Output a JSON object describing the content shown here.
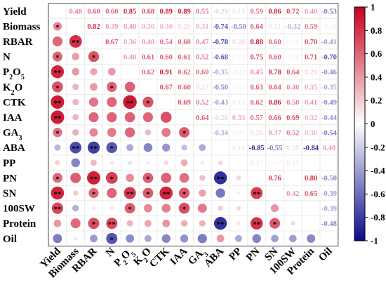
{
  "chart_data": {
    "type": "heatmap",
    "variables": [
      "Yield",
      "Biomass",
      "RBAR",
      "N",
      "P2O5",
      "K2O",
      "CTK",
      "IAA",
      "GA3",
      "ABA",
      "PP",
      "PN",
      "SN",
      "100SW",
      "Protein",
      "Oil"
    ],
    "variable_labels": [
      {
        "base": "Yield",
        "sub": ""
      },
      {
        "base": "Biomass",
        "sub": ""
      },
      {
        "base": "RBAR",
        "sub": ""
      },
      {
        "base": "N",
        "sub": ""
      },
      {
        "base": "P",
        "sub": "2",
        "base2": "O",
        "sub2": "5"
      },
      {
        "base": "K",
        "sub": "2",
        "base2": "O",
        "sub2": ""
      },
      {
        "base": "CTK",
        "sub": ""
      },
      {
        "base": "IAA",
        "sub": ""
      },
      {
        "base": "GA",
        "sub": "3"
      },
      {
        "base": "ABA",
        "sub": ""
      },
      {
        "base": "PP",
        "sub": ""
      },
      {
        "base": "PN",
        "sub": ""
      },
      {
        "base": "SN",
        "sub": ""
      },
      {
        "base": "100SW",
        "sub": ""
      },
      {
        "base": "Protein",
        "sub": ""
      },
      {
        "base": "Oil",
        "sub": ""
      }
    ],
    "upper_triangle_format": "value text",
    "lower_triangle_format": "circle (size & color by r) with significance stars",
    "correlations": [
      [
        1,
        0.48,
        0.6,
        0.6,
        0.85,
        0.68,
        0.89,
        0.89,
        0.55,
        -0.29,
        0.19,
        0.59,
        0.86,
        0.72,
        0.4,
        -0.53
      ],
      [
        0.48,
        1,
        0.82,
        0.39,
        0.4,
        0.3,
        0.3,
        0.29,
        0.31,
        -0.74,
        -0.5,
        0.64,
        0.21,
        -0.32,
        0.59,
        -0.08
      ],
      [
        0.6,
        0.82,
        1,
        0.67,
        0.36,
        0.4,
        0.54,
        0.6,
        0.47,
        -0.78,
        0.28,
        0.88,
        0.6,
        0.1,
        0.7,
        -0.41
      ],
      [
        0.6,
        0.39,
        0.67,
        1,
        0.4,
        0.61,
        0.6,
        0.61,
        0.52,
        -0.68,
        0.1,
        0.75,
        0.6,
        0.1,
        0.71,
        -0.7
      ],
      [
        0.85,
        0.4,
        0.36,
        0.4,
        1,
        0.62,
        0.91,
        0.62,
        0.6,
        -0.35,
        -0.12,
        0.45,
        0.78,
        0.64,
        0.29,
        -0.46
      ],
      [
        0.68,
        0.3,
        0.4,
        0.61,
        0.62,
        1,
        0.67,
        0.6,
        0.27,
        -0.5,
        -0.07,
        0.63,
        0.64,
        0.46,
        0.35,
        -0.35
      ],
      [
        0.89,
        0.3,
        0.54,
        0.6,
        0.91,
        0.67,
        1,
        0.69,
        0.52,
        -0.43,
        0.15,
        0.62,
        0.86,
        0.5,
        0.41,
        -0.49
      ],
      [
        0.89,
        0.29,
        0.6,
        0.61,
        0.62,
        0.6,
        0.69,
        1,
        0.64,
        -0.26,
        0.33,
        0.57,
        0.66,
        0.69,
        0.32,
        -0.44
      ],
      [
        0.55,
        0.31,
        0.47,
        0.52,
        0.6,
        0.27,
        0.52,
        0.64,
        1,
        -0.34,
        0.09,
        0.26,
        0.37,
        0.52,
        0.3,
        -0.54
      ],
      [
        -0.29,
        -0.74,
        -0.78,
        -0.68,
        -0.35,
        -0.5,
        -0.43,
        -0.26,
        -0.34,
        1,
        0.16,
        -0.85,
        -0.55,
        0.2,
        -0.84,
        0.4
      ],
      [
        0.19,
        -0.5,
        0.28,
        0.1,
        -0.12,
        -0.07,
        0.15,
        0.33,
        0.09,
        0.16,
        1,
        0.17,
        0.07,
        0.15,
        0.1,
        -0.35
      ],
      [
        0.59,
        0.64,
        0.88,
        0.75,
        0.45,
        0.63,
        0.62,
        0.57,
        0.26,
        -0.85,
        0.17,
        1,
        0.76,
        0.0,
        0.8,
        -0.5
      ],
      [
        0.86,
        0.21,
        0.6,
        0.6,
        0.78,
        0.64,
        0.86,
        0.66,
        0.37,
        -0.55,
        0.07,
        0.76,
        1,
        0.42,
        0.65,
        -0.39
      ],
      [
        0.72,
        -0.32,
        0.1,
        0.1,
        0.64,
        0.46,
        0.5,
        0.69,
        0.52,
        0.2,
        0.15,
        0.0,
        0.42,
        1,
        -0.13,
        -0.39
      ],
      [
        0.4,
        0.59,
        0.7,
        0.71,
        0.29,
        0.35,
        0.41,
        0.32,
        0.3,
        -0.84,
        0.1,
        0.8,
        0.65,
        -0.13,
        1,
        -0.48
      ],
      [
        -0.53,
        -0.08,
        -0.41,
        -0.7,
        -0.46,
        -0.35,
        -0.49,
        -0.44,
        -0.54,
        0.4,
        -0.35,
        -0.5,
        -0.39,
        -0.39,
        -0.48,
        1
      ]
    ],
    "hidden_upper_cells": [
      [
        10,
        14
      ],
      [
        10,
        15
      ],
      [
        11,
        13
      ],
      [
        13,
        14
      ]
    ],
    "significance": [
      [
        0,
        1,
        "*"
      ],
      [
        0,
        3,
        "*"
      ],
      [
        0,
        4,
        "**"
      ],
      [
        0,
        5,
        "*"
      ],
      [
        0,
        6,
        "**"
      ],
      [
        0,
        7,
        "**"
      ],
      [
        0,
        8,
        "*"
      ],
      [
        0,
        11,
        "*"
      ],
      [
        0,
        12,
        "**"
      ],
      [
        0,
        13,
        "**"
      ],
      [
        1,
        2,
        "**"
      ],
      [
        1,
        9,
        "**"
      ],
      [
        2,
        3,
        "*"
      ],
      [
        2,
        9,
        "**"
      ],
      [
        2,
        11,
        "**"
      ],
      [
        2,
        12,
        "*"
      ],
      [
        2,
        14,
        "*"
      ],
      [
        3,
        5,
        "*"
      ],
      [
        3,
        9,
        "*"
      ],
      [
        3,
        11,
        "*"
      ],
      [
        3,
        14,
        "**"
      ],
      [
        3,
        15,
        "*"
      ],
      [
        4,
        6,
        "**"
      ],
      [
        4,
        12,
        "**"
      ],
      [
        4,
        13,
        "*"
      ],
      [
        5,
        6,
        "*"
      ],
      [
        5,
        11,
        "*"
      ],
      [
        5,
        12,
        "*"
      ],
      [
        6,
        12,
        "**"
      ],
      [
        7,
        12,
        "*"
      ],
      [
        7,
        13,
        "*"
      ],
      [
        8,
        7,
        "*"
      ],
      [
        9,
        11,
        "**"
      ],
      [
        9,
        14,
        "**"
      ],
      [
        11,
        12,
        "**"
      ],
      [
        11,
        14,
        "**"
      ],
      [
        12,
        14,
        "*"
      ]
    ],
    "colorbar": {
      "min": -1,
      "max": 1,
      "ticks": [
        "1",
        "0.8",
        "0.6",
        "0.4",
        "0.2",
        "0",
        "-0.2",
        "-0.4",
        "-0.6",
        "-0.8",
        "-1"
      ],
      "colors": {
        "negative": "#0a0a8c",
        "neutral": "#ffffff",
        "positive": "#c8001e"
      }
    }
  }
}
